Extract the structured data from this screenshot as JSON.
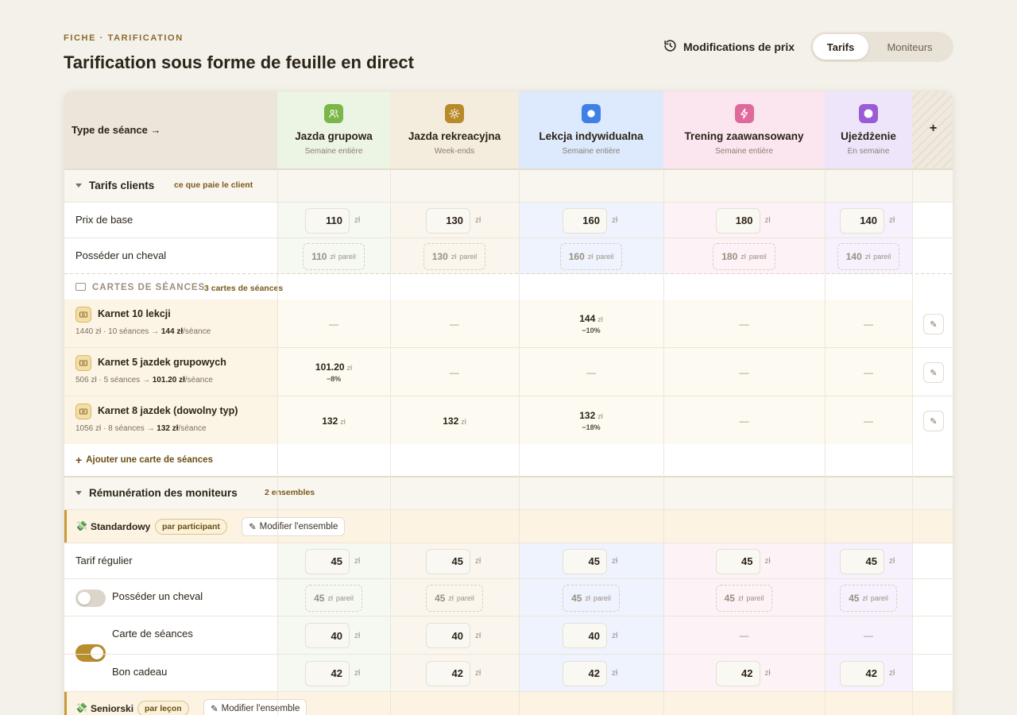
{
  "page": {
    "eyebrow": "FICHE · TARIFICATION",
    "title": "Tarification sous forme de feuille en direct",
    "history_label": "Modifications de prix",
    "tabs": [
      {
        "label": "Tarifs",
        "active": true
      },
      {
        "label": "Moniteurs",
        "active": false
      }
    ]
  },
  "header": {
    "corner_label": "Type de séance →",
    "add_label": "+",
    "columns": [
      {
        "name": "Jazda grupowa",
        "sub": "Semaine entière",
        "accent": "#7ab648",
        "icon": "people-icon"
      },
      {
        "name": "Jazda rekreacyjna",
        "sub": "Week-ends",
        "accent": "#b98a2a",
        "icon": "sun-icon"
      },
      {
        "name": "Lekcja indywidualna",
        "sub": "Semaine entière",
        "accent": "#3f7fe6",
        "icon": "circle-icon"
      },
      {
        "name": "Trening zaawansowany",
        "sub": "Semaine entière",
        "accent": "#e0699c",
        "icon": "bolt-icon"
      },
      {
        "name": "Ujeżdżenie",
        "sub": "En semaine",
        "accent": "#9b5ad6",
        "icon": "octagon-icon"
      }
    ]
  },
  "unit": "zł",
  "same_label": "pareil",
  "dash": "—",
  "client": {
    "title": "Tarifs clients",
    "hint": "ce que paie le client",
    "base": {
      "label": "Prix de base",
      "values": [
        "110",
        "130",
        "160",
        "180",
        "140"
      ]
    },
    "horse": {
      "label": "Posséder un cheval",
      "values": [
        "110",
        "130",
        "160",
        "180",
        "140"
      ]
    }
  },
  "cards": {
    "title": "CARTES DE SÉANCES",
    "count": "3 cartes de séances",
    "add_label": "Ajouter une carte de séances",
    "rows": [
      {
        "name": "Karnet 10 lekcji",
        "total": "1440 zł",
        "sessions": "10 séances",
        "per": "144 zł",
        "per_suffix": "/séance",
        "cells": [
          null,
          null,
          {
            "v": "144",
            "d": "−10%"
          },
          null,
          null
        ]
      },
      {
        "name": "Karnet 5 jazdek grupowych",
        "total": "506 zł",
        "sessions": "5 séances",
        "per": "101.20 zł",
        "per_suffix": "/séance",
        "cells": [
          {
            "v": "101.20",
            "d": "−8%"
          },
          null,
          null,
          null,
          null
        ]
      },
      {
        "name": "Karnet 8 jazdek (dowolny typ)",
        "total": "1056 zł",
        "sessions": "8 séances",
        "per": "132 zł",
        "per_suffix": "/séance",
        "cells": [
          {
            "v": "132",
            "d": ""
          },
          {
            "v": "132",
            "d": ""
          },
          {
            "v": "132",
            "d": "−18%"
          },
          null,
          null
        ]
      }
    ]
  },
  "instructors": {
    "title": "Rémunération des moniteurs",
    "count": "2 ensembles",
    "sets": [
      {
        "name": "Standardowy",
        "mode": "par participant",
        "edit_label": "Modifier l'ensemble"
      },
      {
        "name": "Seniorski",
        "mode": "par leçon",
        "edit_label": "Modifier l'ensemble"
      }
    ],
    "rows": [
      {
        "label": "Tarif régulier",
        "toggle": null,
        "kind": "input",
        "values": [
          "45",
          "45",
          "45",
          "45",
          "45"
        ]
      },
      {
        "label": "Posséder un cheval",
        "toggle": false,
        "kind": "same",
        "values": [
          "45",
          "45",
          "45",
          "45",
          "45"
        ]
      },
      {
        "label": "Carte de séances",
        "toggle": true,
        "kind": "input",
        "values": [
          "40",
          "40",
          "40",
          null,
          null
        ]
      },
      {
        "label": "Bon cadeau",
        "toggle": true,
        "kind": "input",
        "values": [
          "42",
          "42",
          "42",
          "42",
          "42"
        ]
      }
    ]
  }
}
